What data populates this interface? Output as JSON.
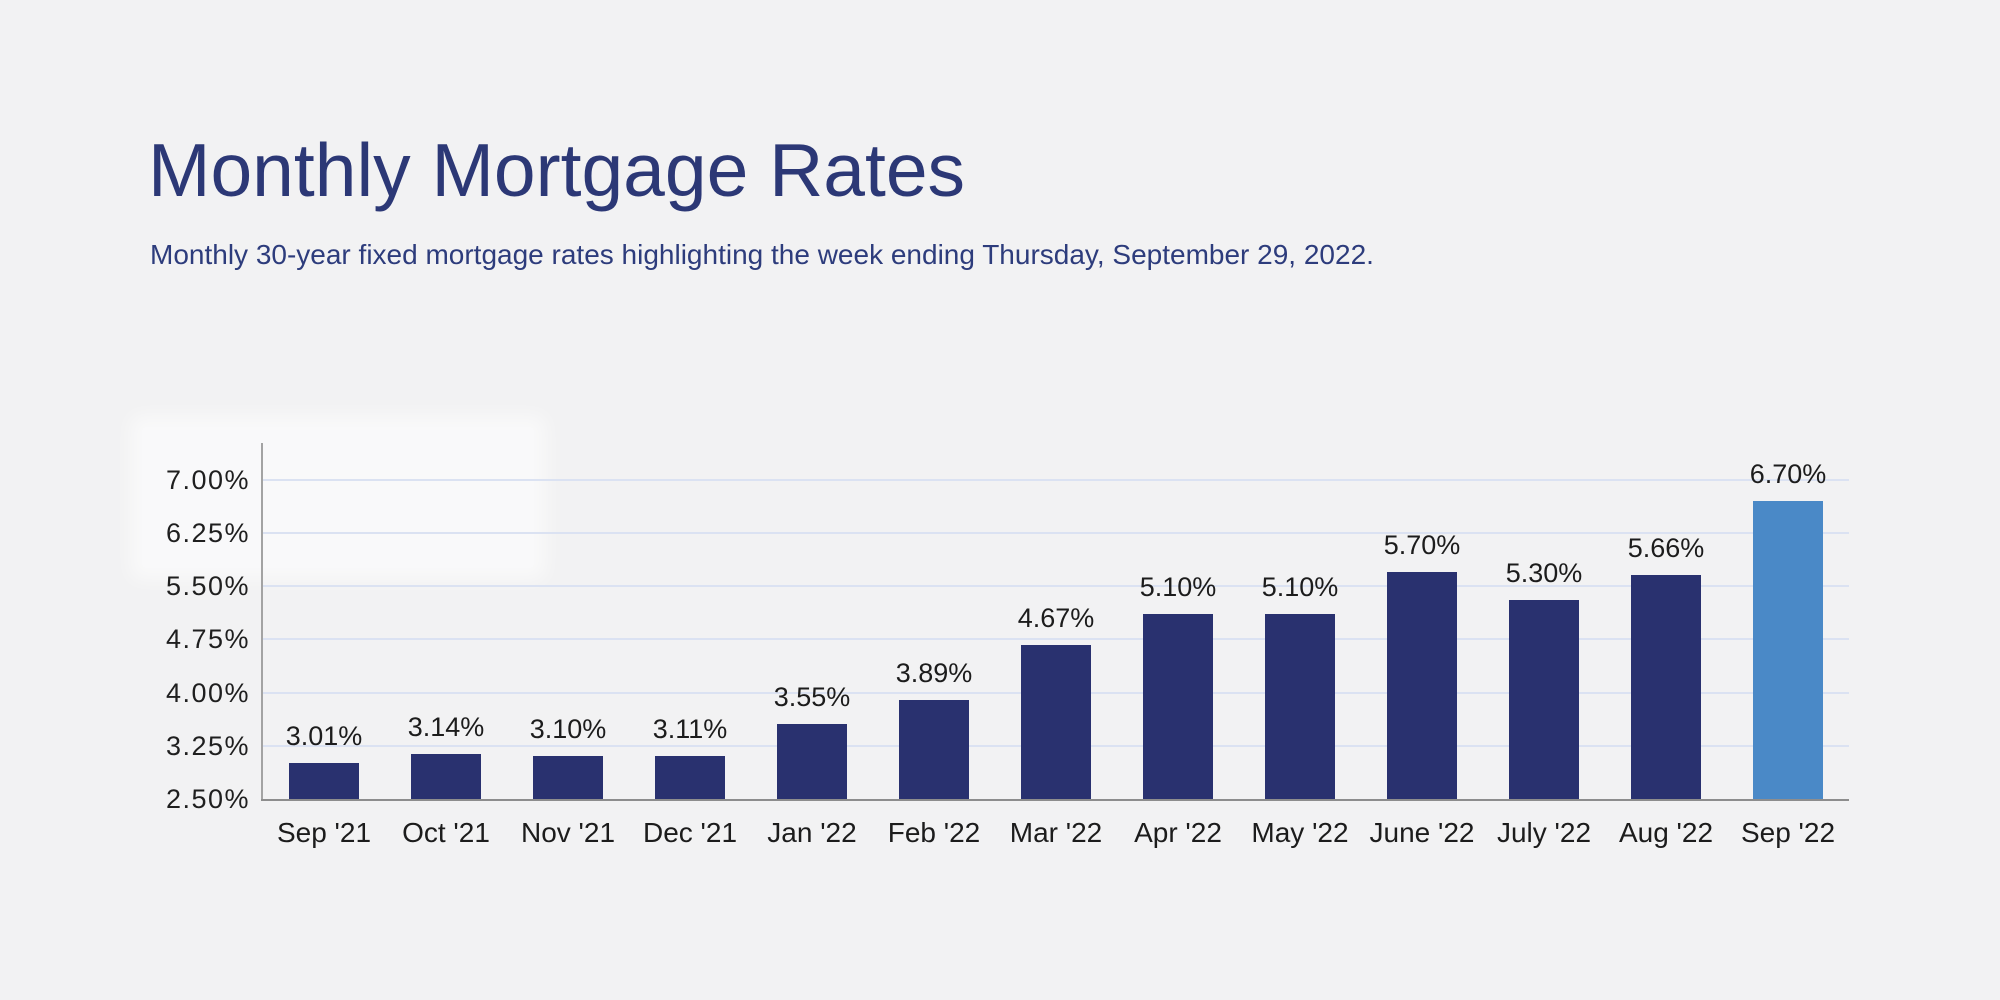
{
  "page": {
    "title": "Monthly Mortgage Rates",
    "subtitle": "Monthly 30-year fixed mortgage rates highlighting the week ending Thursday, September 29, 2022."
  },
  "chart_data": {
    "type": "bar",
    "title": "Monthly Mortgage Rates",
    "subtitle": "Monthly 30-year fixed mortgage rates highlighting the week ending Thursday, September 29, 2022.",
    "categories": [
      "Sep '21",
      "Oct '21",
      "Nov '21",
      "Dec '21",
      "Jan '22",
      "Feb '22",
      "Mar '22",
      "Apr '22",
      "May '22",
      "June '22",
      "July '22",
      "Aug '22",
      "Sep '22"
    ],
    "values": [
      3.01,
      3.14,
      3.1,
      3.11,
      3.55,
      3.89,
      4.67,
      5.1,
      5.1,
      5.7,
      5.3,
      5.66,
      6.7
    ],
    "value_labels": [
      "3.01%",
      "3.14%",
      "3.10%",
      "3.11%",
      "3.55%",
      "3.89%",
      "4.67%",
      "5.10%",
      "5.10%",
      "5.70%",
      "5.30%",
      "5.66%",
      "6.70%"
    ],
    "highlighted_index": 12,
    "highlighted_category": "Sep '22",
    "y_ticks": [
      "7.00%",
      "6.25%",
      "5.50%",
      "4.75%",
      "4.00%",
      "3.25%",
      "2.50%"
    ],
    "y_tick_values": [
      7.0,
      6.25,
      5.5,
      4.75,
      4.0,
      3.25,
      2.5
    ],
    "ylim": [
      2.5,
      7.52
    ],
    "xlabel": "",
    "ylabel": "",
    "grid": "horizontal",
    "legend": "none",
    "colors": {
      "bar": "#29316f",
      "highlight_bar": "#4a89c7",
      "grid": "#dbe2f2",
      "axis": "#8d8d8d",
      "title": "#2c3876",
      "label": "#1c1c1c",
      "background": "#f2f2f3"
    }
  }
}
